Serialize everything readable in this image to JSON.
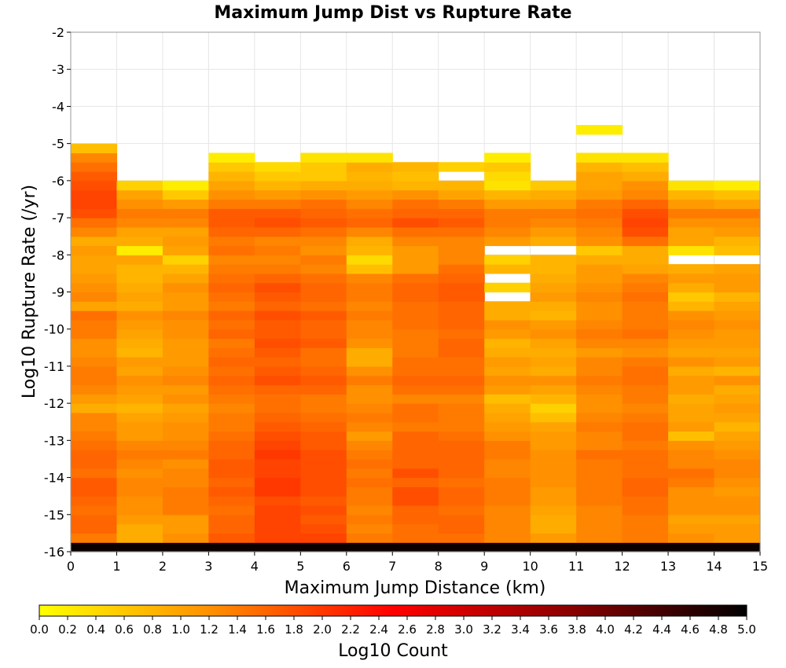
{
  "chart_data": {
    "type": "heatmap",
    "title": "Maximum Jump Dist vs Rupture Rate",
    "xlabel": "Maximum Jump Distance (km)",
    "ylabel": "Log10 Rupture Rate (/yr)",
    "xlim": [
      0,
      15
    ],
    "ylim": [
      -16,
      -2
    ],
    "xticks": [
      "0",
      "1",
      "2",
      "3",
      "4",
      "5",
      "6",
      "7",
      "8",
      "9",
      "10",
      "11",
      "12",
      "13",
      "14",
      "15"
    ],
    "yticks": [
      "-2",
      "-3",
      "-4",
      "-5",
      "-6",
      "-7",
      "-8",
      "-9",
      "-10",
      "-11",
      "-12",
      "-13",
      "-14",
      "-15",
      "-16"
    ],
    "grid": true,
    "x_bin_width": 1,
    "y_bin_width": 0.25,
    "y_bins_start": -16,
    "note_values": "z = Log10 Count per cell; rows ordered bottom (y=-16) to top (y=-2); null = empty cell",
    "z": [
      [
        4.9,
        4.9,
        4.9,
        4.9,
        4.9,
        4.9,
        4.9,
        4.9,
        4.9,
        4.9,
        4.9,
        4.9,
        4.9,
        4.9,
        4.9
      ],
      [
        1.4,
        0.9,
        1.2,
        1.7,
        1.9,
        1.9,
        1.4,
        1.5,
        1.5,
        1.3,
        1.1,
        1.3,
        1.4,
        1.2,
        1.1
      ],
      [
        1.6,
        0.9,
        1.1,
        1.6,
        1.9,
        1.8,
        1.3,
        1.5,
        1.6,
        1.3,
        0.9,
        1.3,
        1.4,
        1.1,
        1.1
      ],
      [
        1.6,
        1.1,
        1.1,
        1.6,
        1.9,
        1.7,
        1.4,
        1.6,
        1.6,
        1.3,
        0.9,
        1.3,
        1.4,
        1.0,
        1.0
      ],
      [
        1.5,
        1.2,
        1.4,
        1.5,
        1.9,
        1.8,
        1.3,
        1.6,
        1.5,
        1.3,
        1.0,
        1.3,
        1.5,
        1.2,
        1.2
      ],
      [
        1.6,
        1.2,
        1.4,
        1.6,
        1.8,
        1.7,
        1.4,
        1.8,
        1.6,
        1.4,
        1.1,
        1.4,
        1.5,
        1.2,
        1.2
      ],
      [
        1.7,
        1.3,
        1.4,
        1.7,
        2.0,
        1.8,
        1.4,
        1.8,
        1.6,
        1.4,
        1.1,
        1.4,
        1.6,
        1.2,
        1.1
      ],
      [
        1.7,
        1.3,
        1.3,
        1.6,
        2.0,
        1.8,
        1.5,
        1.6,
        1.5,
        1.4,
        1.2,
        1.4,
        1.6,
        1.4,
        1.2
      ],
      [
        1.5,
        1.2,
        1.3,
        1.7,
        1.9,
        1.8,
        1.4,
        1.8,
        1.6,
        1.3,
        1.2,
        1.4,
        1.5,
        1.5,
        1.3
      ],
      [
        1.6,
        1.3,
        1.2,
        1.7,
        1.9,
        1.8,
        1.5,
        1.6,
        1.6,
        1.3,
        1.2,
        1.4,
        1.5,
        1.3,
        1.3
      ],
      [
        1.6,
        1.4,
        1.4,
        1.6,
        2.0,
        1.8,
        1.4,
        1.6,
        1.6,
        1.4,
        1.2,
        1.5,
        1.5,
        1.3,
        1.2
      ],
      [
        1.5,
        1.3,
        1.3,
        1.6,
        1.9,
        1.7,
        1.3,
        1.6,
        1.6,
        1.4,
        1.1,
        1.3,
        1.4,
        1.2,
        1.1
      ],
      [
        1.4,
        1.1,
        1.2,
        1.5,
        1.8,
        1.7,
        1.1,
        1.6,
        1.5,
        1.2,
        1.1,
        1.3,
        1.5,
        0.7,
        1.0
      ],
      [
        1.3,
        1.1,
        1.2,
        1.4,
        1.7,
        1.6,
        1.3,
        1.4,
        1.4,
        1.1,
        1.0,
        1.4,
        1.5,
        1.1,
        0.8
      ],
      [
        1.3,
        1.0,
        1.1,
        1.4,
        1.6,
        1.5,
        1.4,
        1.5,
        1.4,
        1.0,
        0.7,
        1.3,
        1.4,
        1.0,
        1.0
      ],
      [
        0.9,
        0.8,
        1.0,
        1.3,
        1.5,
        1.4,
        1.3,
        1.5,
        1.4,
        0.9,
        0.5,
        1.2,
        1.3,
        1.0,
        1.1
      ],
      [
        1.1,
        1.0,
        1.2,
        1.4,
        1.5,
        1.4,
        1.2,
        1.3,
        1.3,
        0.7,
        0.8,
        1.2,
        1.4,
        0.9,
        1.0
      ],
      [
        1.3,
        1.1,
        1.1,
        1.5,
        1.6,
        1.6,
        1.2,
        1.5,
        1.5,
        1.1,
        1.0,
        1.3,
        1.4,
        1.1,
        0.9
      ],
      [
        1.4,
        1.2,
        1.3,
        1.6,
        1.8,
        1.7,
        1.4,
        1.6,
        1.6,
        1.2,
        1.2,
        1.4,
        1.5,
        1.1,
        1.2
      ],
      [
        1.4,
        1.0,
        1.2,
        1.5,
        1.7,
        1.6,
        1.2,
        1.5,
        1.5,
        1.0,
        0.9,
        1.3,
        1.5,
        0.9,
        0.8
      ],
      [
        1.3,
        1.1,
        1.1,
        1.6,
        1.6,
        1.5,
        0.9,
        1.5,
        1.5,
        1.1,
        1.0,
        1.3,
        1.4,
        1.2,
        1.1
      ],
      [
        1.2,
        0.8,
        1.1,
        1.5,
        1.7,
        1.5,
        0.9,
        1.4,
        1.6,
        0.9,
        0.9,
        1.1,
        1.2,
        1.0,
        1.0
      ],
      [
        1.2,
        0.9,
        1.1,
        1.4,
        1.8,
        1.7,
        1.2,
        1.4,
        1.6,
        0.8,
        1.0,
        1.3,
        1.3,
        1.1,
        1.1
      ],
      [
        1.4,
        1.0,
        1.2,
        1.6,
        1.7,
        1.6,
        1.3,
        1.4,
        1.5,
        1.1,
        1.2,
        1.4,
        1.5,
        1.2,
        1.1
      ],
      [
        1.4,
        1.1,
        1.2,
        1.5,
        1.7,
        1.6,
        1.3,
        1.5,
        1.6,
        1.2,
        1.1,
        1.3,
        1.4,
        1.3,
        1.2
      ],
      [
        1.5,
        1.2,
        1.3,
        1.6,
        1.8,
        1.7,
        1.4,
        1.5,
        1.6,
        0.9,
        0.8,
        1.2,
        1.4,
        1.2,
        1.1
      ],
      [
        1.0,
        0.9,
        1.1,
        1.4,
        1.6,
        1.5,
        1.3,
        1.5,
        1.6,
        0.9,
        0.9,
        1.2,
        1.4,
        0.8,
        1.0
      ],
      [
        1.3,
        1.0,
        1.1,
        1.5,
        1.7,
        1.6,
        1.4,
        1.6,
        1.7,
        null,
        1.1,
        1.3,
        1.5,
        0.6,
        0.8
      ],
      [
        1.2,
        0.9,
        1.2,
        1.6,
        1.8,
        1.6,
        1.4,
        1.6,
        1.7,
        0.5,
        1.0,
        1.2,
        1.4,
        0.9,
        1.1
      ],
      [
        1.1,
        0.8,
        1.0,
        1.5,
        1.6,
        1.5,
        1.3,
        1.5,
        1.6,
        null,
        0.9,
        1.1,
        1.3,
        1.1,
        1.1
      ],
      [
        1.0,
        0.8,
        0.8,
        1.4,
        1.4,
        1.3,
        0.7,
        1.1,
        1.5,
        0.8,
        0.8,
        1.1,
        1.0,
        0.9,
        1.0
      ],
      [
        1.0,
        1.0,
        0.5,
        1.3,
        1.3,
        1.4,
        0.4,
        1.1,
        1.3,
        0.5,
        0.8,
        0.9,
        0.9,
        null,
        null
      ],
      [
        1.1,
        0.2,
        1.0,
        1.5,
        1.4,
        1.2,
        0.8,
        1.1,
        1.3,
        null,
        null,
        0.6,
        0.9,
        0.3,
        0.7
      ],
      [
        0.9,
        0.9,
        1.1,
        1.4,
        1.3,
        1.3,
        0.9,
        1.3,
        1.3,
        1.1,
        0.9,
        1.2,
        1.5,
        1.0,
        0.8
      ],
      [
        1.3,
        1.0,
        1.0,
        1.6,
        1.6,
        1.5,
        1.3,
        1.5,
        1.5,
        1.3,
        1.1,
        1.3,
        1.8,
        1.0,
        1.1
      ],
      [
        1.5,
        1.3,
        1.3,
        1.7,
        1.8,
        1.7,
        1.6,
        1.8,
        1.7,
        1.4,
        1.3,
        1.4,
        1.9,
        1.2,
        1.2
      ],
      [
        1.8,
        1.4,
        1.4,
        1.7,
        1.7,
        1.6,
        1.5,
        1.6,
        1.6,
        1.4,
        1.4,
        1.5,
        1.8,
        1.4,
        1.4
      ],
      [
        1.9,
        1.2,
        1.1,
        1.4,
        1.4,
        1.5,
        1.3,
        1.5,
        1.4,
        1.1,
        1.1,
        1.4,
        1.6,
        1.1,
        1.0
      ],
      [
        1.9,
        1.0,
        0.6,
        1.2,
        1.1,
        1.2,
        1.1,
        1.2,
        1.0,
        0.8,
        0.9,
        1.1,
        1.3,
        0.8,
        0.7
      ],
      [
        1.8,
        0.5,
        0.2,
        1.0,
        0.8,
        0.9,
        0.9,
        0.8,
        0.8,
        0.3,
        0.6,
        1.0,
        1.2,
        0.3,
        0.2
      ],
      [
        1.7,
        null,
        null,
        0.8,
        0.6,
        0.6,
        0.8,
        0.7,
        null,
        0.4,
        null,
        1.0,
        0.9,
        null,
        null
      ],
      [
        1.5,
        null,
        null,
        0.6,
        0.4,
        0.6,
        0.9,
        0.8,
        0.5,
        0.6,
        null,
        0.8,
        0.7,
        null,
        null
      ],
      [
        1.3,
        null,
        null,
        0.2,
        null,
        0.3,
        0.3,
        null,
        null,
        0.2,
        null,
        0.3,
        0.3,
        null,
        null
      ],
      [
        0.7,
        null,
        null,
        null,
        null,
        null,
        null,
        null,
        null,
        null,
        null,
        null,
        null,
        null,
        null
      ],
      [
        null,
        null,
        null,
        null,
        null,
        null,
        null,
        null,
        null,
        null,
        null,
        null,
        null,
        null,
        null
      ],
      [
        null,
        null,
        null,
        null,
        null,
        null,
        null,
        null,
        null,
        null,
        null,
        0.2,
        null,
        null,
        null
      ],
      [
        null,
        null,
        null,
        null,
        null,
        null,
        null,
        null,
        null,
        null,
        null,
        null,
        null,
        null,
        null
      ]
    ],
    "colorbar": {
      "label": "Log10 Count",
      "min": 0.0,
      "max": 5.0,
      "ticks": [
        "0.0",
        "0.2",
        "0.4",
        "0.6",
        "0.8",
        "1.0",
        "1.2",
        "1.4",
        "1.6",
        "1.8",
        "2.0",
        "2.2",
        "2.4",
        "2.6",
        "2.8",
        "3.0",
        "3.2",
        "3.4",
        "3.6",
        "3.8",
        "4.0",
        "4.2",
        "4.4",
        "4.6",
        "4.8",
        "5.0"
      ],
      "colors": [
        "#ffff00",
        "#ff8c00",
        "#ff0000",
        "#8b0000",
        "#000000"
      ]
    }
  }
}
